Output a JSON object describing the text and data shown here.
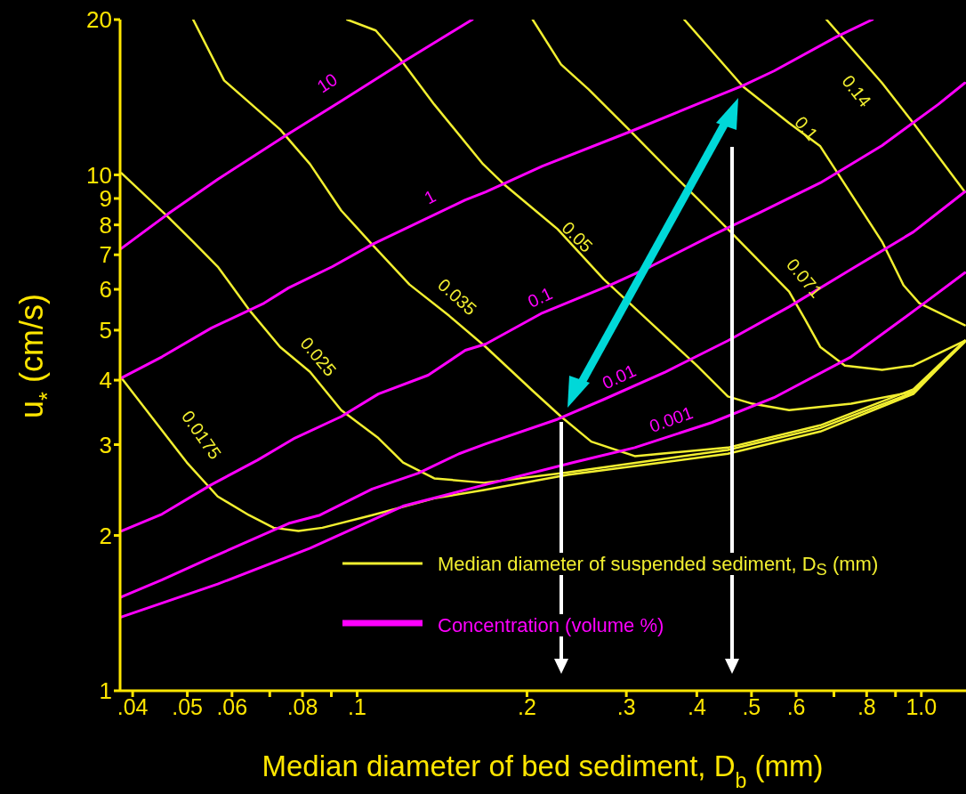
{
  "chart_data": {
    "type": "line",
    "xlabel": "Median diameter of bed sediment, D$_{b}$ (mm)",
    "ylabel": "u$_{*}$ (cm/s)",
    "log": "xy",
    "xlim": [
      0.038,
      1.2
    ],
    "ylim": [
      1,
      20
    ],
    "xticks": [
      {
        "value": 0.04,
        "label": ".04"
      },
      {
        "value": 0.05,
        "label": ".05"
      },
      {
        "value": 0.06,
        "label": ".06"
      },
      {
        "value": 0.07,
        "label": null
      },
      {
        "value": 0.08,
        "label": ".08"
      },
      {
        "value": 0.09,
        "label": null
      },
      {
        "value": 0.1,
        "label": ".1"
      },
      {
        "value": 0.2,
        "label": ".2"
      },
      {
        "value": 0.3,
        "label": ".3"
      },
      {
        "value": 0.4,
        "label": ".4"
      },
      {
        "value": 0.5,
        "label": ".5"
      },
      {
        "value": 0.6,
        "label": ".6"
      },
      {
        "value": 0.7,
        "label": null
      },
      {
        "value": 0.8,
        "label": ".8"
      },
      {
        "value": 0.9,
        "label": null
      },
      {
        "value": 1.0,
        "label": "1.0"
      }
    ],
    "yticks": [
      1,
      2,
      3,
      4,
      5,
      6,
      7,
      8,
      9,
      10,
      20
    ],
    "annotations": [
      "Median diameter of suspended sediment, D$_{S}$ (mm)",
      "Concentration (volume %)"
    ],
    "series": [
      {
        "name": "0.0175",
        "color": "#f2ef30",
        "x": [
          0.0382,
          0.0499,
          0.0566,
          0.0643,
          0.0711,
          0.0787,
          0.0868,
          0.1063,
          0.137,
          0.1678,
          0.2358,
          0.454,
          0.662,
          0.968,
          1.194
        ],
        "values": [
          4.04,
          2.77,
          2.38,
          2.19,
          2.07,
          2.04,
          2.07,
          2.19,
          2.36,
          2.45,
          2.62,
          2.88,
          3.18,
          3.76,
          4.77
        ]
      },
      {
        "name": "0.025",
        "color": "#f2ef30",
        "x": [
          0.0382,
          0.0462,
          0.0512,
          0.0566,
          0.0643,
          0.073,
          0.0825,
          0.0937,
          0.109,
          0.1206,
          0.137,
          0.1678,
          0.2358,
          0.454,
          0.662,
          0.968,
          1.194
        ],
        "values": [
          10.08,
          8.29,
          7.42,
          6.64,
          5.48,
          4.64,
          4.15,
          3.5,
          3.09,
          2.77,
          2.58,
          2.53,
          2.65,
          2.93,
          3.23,
          3.79,
          4.77
        ]
      },
      {
        "name": "0.035",
        "color": "#f2ef30",
        "x": [
          0.0512,
          0.0581,
          0.073,
          0.0825,
          0.0937,
          0.1063,
          0.1238,
          0.1456,
          0.169,
          0.2055,
          0.2298,
          0.26,
          0.3105,
          0.454,
          0.662,
          0.968,
          1.194
        ],
        "values": [
          20,
          15.24,
          12.25,
          10.49,
          8.53,
          7.33,
          6.13,
          5.33,
          4.64,
          3.8,
          3.4,
          3.04,
          2.85,
          2.96,
          3.27,
          3.84,
          4.77
        ]
      },
      {
        "name": "0.05",
        "color": "#f2ef30",
        "x": [
          0.096,
          0.1079,
          0.1189,
          0.137,
          0.1672,
          0.183,
          0.2266,
          0.2735,
          0.335,
          0.4,
          0.454,
          0.502,
          0.583,
          0.751,
          0.968,
          1.194
        ],
        "values": [
          20,
          19.05,
          16.84,
          13.69,
          10.49,
          9.54,
          7.85,
          6.28,
          5.11,
          4.27,
          3.72,
          3.6,
          3.5,
          3.6,
          3.8,
          4.74
        ]
      },
      {
        "name": "0.071",
        "color": "#f2ef30",
        "x": [
          0.2047,
          0.2298,
          0.2572,
          0.303,
          0.361,
          0.4,
          0.454,
          0.583,
          0.622,
          0.662,
          0.732,
          0.852,
          0.968,
          1.194
        ],
        "values": [
          20,
          16.37,
          14.65,
          12.25,
          10.08,
          9.02,
          7.85,
          5.94,
          5.25,
          4.64,
          4.27,
          4.19,
          4.27,
          4.77
        ]
      },
      {
        "name": "0.1",
        "color": "#f2ef30",
        "x": [
          0.38,
          0.483,
          0.583,
          0.662,
          0.852,
          0.93,
          0.992,
          1.194
        ],
        "values": [
          20,
          14.83,
          12.6,
          11.36,
          7.42,
          6.11,
          5.64,
          5.11
        ]
      },
      {
        "name": "0.14",
        "color": "#f2ef30",
        "x": [
          0.679,
          0.852,
          0.968,
          1.194
        ],
        "values": [
          20,
          15.07,
          12.6,
          9.27
        ]
      },
      {
        "name": "10",
        "color": "#ff00ff",
        "x": [
          0.0382,
          0.0462,
          0.0566,
          0.0745,
          0.0937,
          0.121,
          0.16
        ],
        "values": [
          7.2,
          8.4,
          9.8,
          11.9,
          13.9,
          16.6,
          20
        ]
      },
      {
        "name": "1",
        "color": "#ff00ff",
        "x": [
          0.0382,
          0.0451,
          0.0552,
          0.0684,
          0.0756,
          0.0904,
          0.1063,
          0.1555,
          0.169,
          0.213,
          0.303,
          0.4,
          0.483,
          0.548,
          0.706,
          0.819
        ],
        "values": [
          4.04,
          4.44,
          5.05,
          5.64,
          6.04,
          6.64,
          7.33,
          8.94,
          9.27,
          10.4,
          12.1,
          13.7,
          14.9,
          15.9,
          18.5,
          20
        ]
      },
      {
        "name": "0.1",
        "color": "#ff00ff",
        "x": [
          0.0382,
          0.0451,
          0.0552,
          0.0666,
          0.0776,
          0.0937,
          0.109,
          0.1336,
          0.1555,
          0.169,
          0.213,
          0.2806,
          0.331,
          0.425,
          0.515,
          0.662,
          0.852,
          1.071,
          1.194
        ],
        "values": [
          2.04,
          2.2,
          2.51,
          2.8,
          3.09,
          3.4,
          3.76,
          4.09,
          4.57,
          4.7,
          5.4,
          6.11,
          6.64,
          7.63,
          8.43,
          9.65,
          11.4,
          13.69,
          15.07
        ]
      },
      {
        "name": "0.01",
        "color": "#ff00ff",
        "x": [
          0.0382,
          0.0451,
          0.0538,
          0.0756,
          0.0859,
          0.1063,
          0.1283,
          0.1516,
          0.169,
          0.2266,
          0.2735,
          0.352,
          0.454,
          0.583,
          0.751,
          0.968,
          1.194
        ],
        "values": [
          1.52,
          1.64,
          1.79,
          2.11,
          2.19,
          2.46,
          2.64,
          2.88,
          3.01,
          3.36,
          3.67,
          4.15,
          4.77,
          5.55,
          6.56,
          7.75,
          9.27
        ]
      },
      {
        "name": "0.001",
        "color": "#ff00ff",
        "x": [
          0.0382,
          0.0566,
          0.0825,
          0.1206,
          0.169,
          0.2418,
          0.3105,
          0.425,
          0.548,
          0.751,
          0.992,
          1.194
        ],
        "values": [
          1.39,
          1.61,
          1.89,
          2.28,
          2.51,
          2.77,
          2.96,
          3.31,
          3.7,
          4.44,
          5.55,
          6.46
        ]
      }
    ]
  }
}
